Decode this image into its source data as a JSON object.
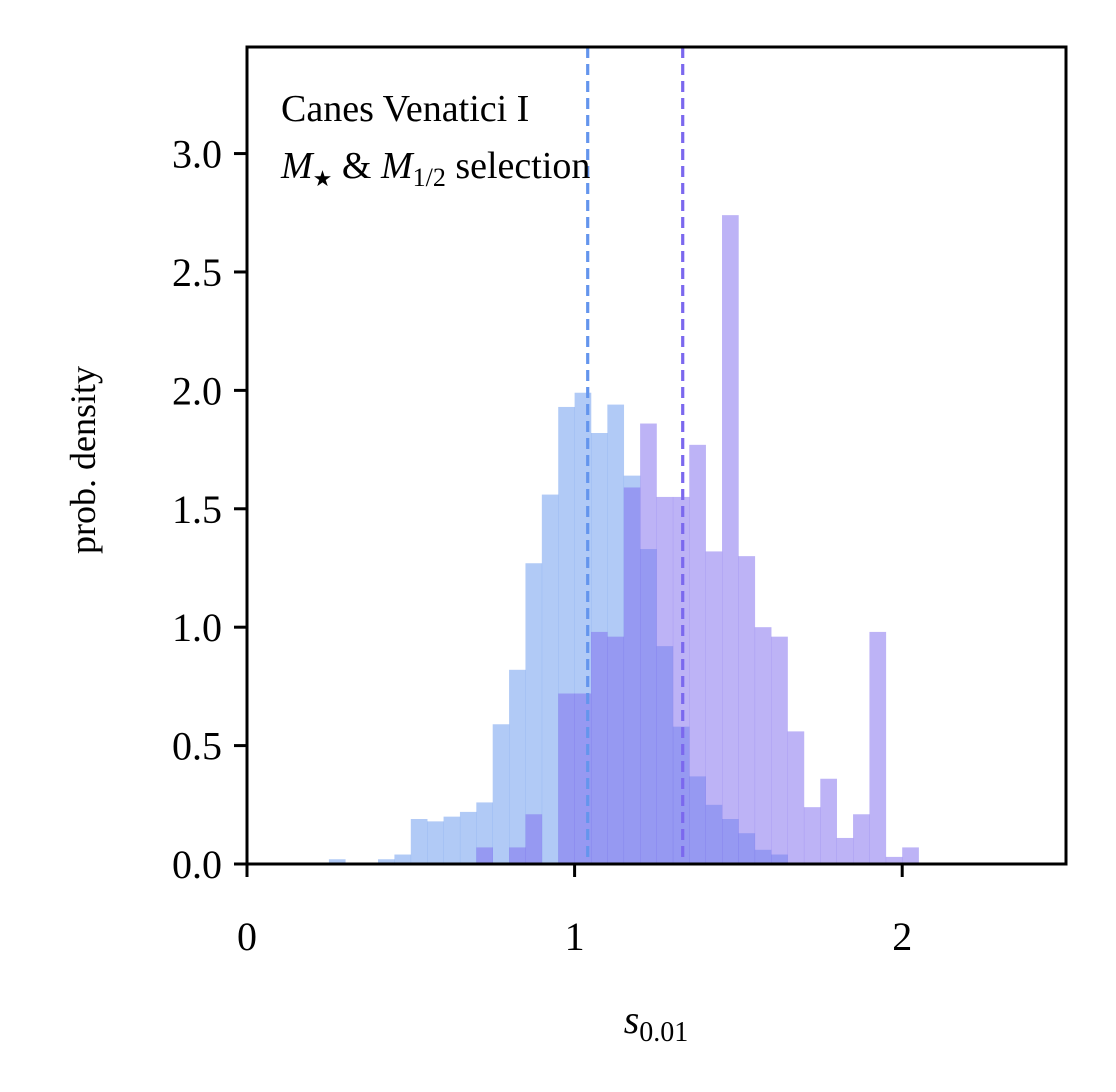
{
  "chart_data": {
    "type": "bar",
    "subtype": "histogram",
    "annotation_lines": [
      "Canes Venatici I",
      "M★ & M1/2 selection"
    ],
    "annotation_parts": {
      "line1": "Canes Venatici I",
      "m_star": "M",
      "star_sub": "★",
      "amp": " & ",
      "m_half": "M",
      "half_sub": "1/2",
      "selection": " selection"
    },
    "xlabel": "s0.01",
    "xlabel_parts": {
      "base": "s",
      "sub": "0.01"
    },
    "ylabel": "prob. density",
    "xlim": [
      0,
      2.5
    ],
    "ylim": [
      0,
      3.45
    ],
    "xticks": [
      0,
      1,
      2
    ],
    "xtick_labels": [
      "0",
      "1",
      "2"
    ],
    "yticks": [
      0.0,
      0.5,
      1.0,
      1.5,
      2.0,
      2.5,
      3.0
    ],
    "ytick_labels": [
      "0.0",
      "0.5",
      "1.0",
      "1.5",
      "2.0",
      "2.5",
      "3.0"
    ],
    "grid": false,
    "legend": "none",
    "series": [
      {
        "color": "#6495ed",
        "opacity": 0.5,
        "bin_width": 0.05,
        "bins": [
          {
            "x0": 0.25,
            "y": 0.02
          },
          {
            "x0": 0.4,
            "y": 0.02
          },
          {
            "x0": 0.45,
            "y": 0.04
          },
          {
            "x0": 0.5,
            "y": 0.19
          },
          {
            "x0": 0.55,
            "y": 0.18
          },
          {
            "x0": 0.6,
            "y": 0.2
          },
          {
            "x0": 0.65,
            "y": 0.22
          },
          {
            "x0": 0.7,
            "y": 0.26
          },
          {
            "x0": 0.75,
            "y": 0.59
          },
          {
            "x0": 0.8,
            "y": 0.82
          },
          {
            "x0": 0.85,
            "y": 1.27
          },
          {
            "x0": 0.9,
            "y": 1.56
          },
          {
            "x0": 0.95,
            "y": 1.93
          },
          {
            "x0": 1.0,
            "y": 1.99
          },
          {
            "x0": 1.05,
            "y": 1.82
          },
          {
            "x0": 1.1,
            "y": 1.94
          },
          {
            "x0": 1.15,
            "y": 1.64
          },
          {
            "x0": 1.2,
            "y": 1.33
          },
          {
            "x0": 1.25,
            "y": 0.92
          },
          {
            "x0": 1.3,
            "y": 0.58
          },
          {
            "x0": 1.35,
            "y": 0.37
          },
          {
            "x0": 1.4,
            "y": 0.25
          },
          {
            "x0": 1.45,
            "y": 0.19
          },
          {
            "x0": 1.5,
            "y": 0.13
          },
          {
            "x0": 1.55,
            "y": 0.06
          },
          {
            "x0": 1.6,
            "y": 0.04
          }
        ]
      },
      {
        "color": "#7b68ee",
        "opacity": 0.5,
        "bin_width": 0.05,
        "bins": [
          {
            "x0": 0.7,
            "y": 0.07
          },
          {
            "x0": 0.8,
            "y": 0.07
          },
          {
            "x0": 0.85,
            "y": 0.21
          },
          {
            "x0": 0.95,
            "y": 0.72
          },
          {
            "x0": 1.0,
            "y": 0.72
          },
          {
            "x0": 1.05,
            "y": 0.98
          },
          {
            "x0": 1.1,
            "y": 0.96
          },
          {
            "x0": 1.15,
            "y": 1.59
          },
          {
            "x0": 1.2,
            "y": 1.86
          },
          {
            "x0": 1.25,
            "y": 1.55
          },
          {
            "x0": 1.3,
            "y": 1.55
          },
          {
            "x0": 1.35,
            "y": 1.77
          },
          {
            "x0": 1.4,
            "y": 1.32
          },
          {
            "x0": 1.45,
            "y": 2.74
          },
          {
            "x0": 1.5,
            "y": 1.3
          },
          {
            "x0": 1.55,
            "y": 1.0
          },
          {
            "x0": 1.6,
            "y": 0.96
          },
          {
            "x0": 1.65,
            "y": 0.56
          },
          {
            "x0": 1.7,
            "y": 0.24
          },
          {
            "x0": 1.75,
            "y": 0.36
          },
          {
            "x0": 1.8,
            "y": 0.11
          },
          {
            "x0": 1.85,
            "y": 0.21
          },
          {
            "x0": 1.9,
            "y": 0.98
          },
          {
            "x0": 1.95,
            "y": 0.03
          },
          {
            "x0": 2.0,
            "y": 0.07
          }
        ]
      }
    ],
    "vlines": [
      {
        "x": 1.04,
        "color": "#6495ed",
        "style": "dashed"
      },
      {
        "x": 1.33,
        "color": "#7b68ee",
        "style": "dashed"
      }
    ]
  }
}
